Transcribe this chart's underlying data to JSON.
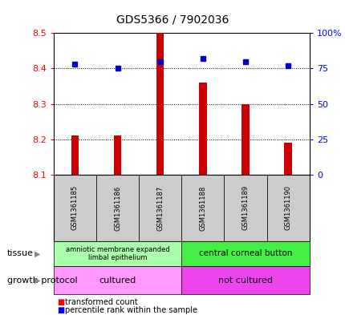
{
  "title": "GDS5366 / 7902036",
  "samples": [
    "GSM1361185",
    "GSM1361186",
    "GSM1361187",
    "GSM1361188",
    "GSM1361189",
    "GSM1361190"
  ],
  "bar_values": [
    8.21,
    8.21,
    8.5,
    8.36,
    8.3,
    8.19
  ],
  "bar_base": 8.1,
  "percentile_values": [
    78,
    75,
    80,
    82,
    80,
    77
  ],
  "ylim_left": [
    8.1,
    8.5
  ],
  "yticks_left": [
    8.1,
    8.2,
    8.3,
    8.4,
    8.5
  ],
  "yticks_right": [
    0,
    25,
    50,
    75,
    100
  ],
  "bar_color": "#CC0000",
  "percentile_color": "#0000CC",
  "tissue_labels": [
    "amniotic membrane expanded\nlimbal epithelium",
    "central corneal button"
  ],
  "tissue_color_left": "#AAFFAA",
  "tissue_color_right": "#44EE44",
  "growth_labels": [
    "cultured",
    "not cultured"
  ],
  "growth_color_left": "#FF99FF",
  "growth_color_right": "#EE44EE",
  "sample_bg_color": "#CCCCCC",
  "legend_red_label": "transformed count",
  "legend_blue_label": "percentile rank within the sample",
  "figsize": [
    4.31,
    3.93
  ],
  "dpi": 100
}
